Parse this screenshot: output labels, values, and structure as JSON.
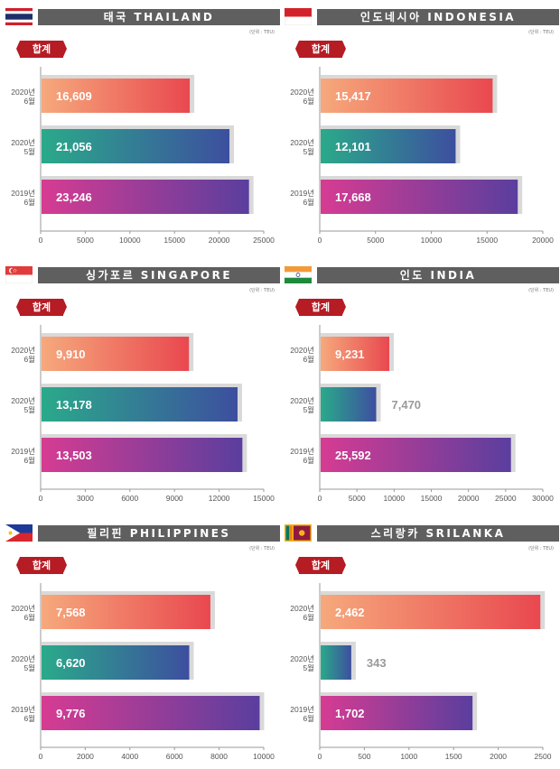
{
  "unit_label": "(단위 : TEU)",
  "sum_label": "합계",
  "colors": {
    "header_bg": "#5f5f5f",
    "tag_red": "#b51c24",
    "bar_shadow": "#d9d9d9",
    "grad_2020_06": [
      "#f6a97c",
      "#e9484f"
    ],
    "grad_2020_05": [
      "#2aaa8a",
      "#3d4f9f"
    ],
    "grad_2019_06": [
      "#d63c92",
      "#5a3e9e"
    ]
  },
  "chart_data": [
    {
      "type": "bar",
      "orientation": "horizontal",
      "title": "태국 THAILAND",
      "country": "thailand",
      "categories": [
        [
          "2020년",
          "6월"
        ],
        [
          "2020년",
          "5월"
        ],
        [
          "2019년",
          "6월"
        ]
      ],
      "values": [
        16609,
        21056,
        23246
      ],
      "labels": [
        "16,609",
        "21,056",
        "23,246"
      ],
      "xlim": [
        0,
        25000
      ],
      "xticks": [
        0,
        5000,
        10000,
        15000,
        20000,
        25000
      ]
    },
    {
      "type": "bar",
      "orientation": "horizontal",
      "title": "인도네시아 INDONESIA",
      "country": "indonesia",
      "categories": [
        [
          "2020년",
          "6월"
        ],
        [
          "2020년",
          "5월"
        ],
        [
          "2019년",
          "6월"
        ]
      ],
      "values": [
        15417,
        12101,
        17668
      ],
      "labels": [
        "15,417",
        "12,101",
        "17,668"
      ],
      "xlim": [
        0,
        20000
      ],
      "xticks": [
        0,
        5000,
        10000,
        15000,
        20000
      ]
    },
    {
      "type": "bar",
      "orientation": "horizontal",
      "title": "싱가포르 SINGAPORE",
      "country": "singapore",
      "categories": [
        [
          "2020년",
          "6월"
        ],
        [
          "2020년",
          "5월"
        ],
        [
          "2019년",
          "6월"
        ]
      ],
      "values": [
        9910,
        13178,
        13503
      ],
      "labels": [
        "9,910",
        "13,178",
        "13,503"
      ],
      "xlim": [
        0,
        15000
      ],
      "xticks": [
        0,
        3000,
        6000,
        9000,
        12000,
        15000
      ]
    },
    {
      "type": "bar",
      "orientation": "horizontal",
      "title": "인도 INDIA",
      "country": "india",
      "categories": [
        [
          "2020년",
          "6월"
        ],
        [
          "2020년",
          "5월"
        ],
        [
          "2019년",
          "6월"
        ]
      ],
      "values": [
        9231,
        7470,
        25592
      ],
      "labels": [
        "9,231",
        "7,470",
        "25,592"
      ],
      "xlim": [
        0,
        30000
      ],
      "xticks": [
        0,
        5000,
        10000,
        15000,
        20000,
        25000,
        30000
      ]
    },
    {
      "type": "bar",
      "orientation": "horizontal",
      "title": "필리핀 PHILIPPINES",
      "country": "philippines",
      "categories": [
        [
          "2020년",
          "6월"
        ],
        [
          "2020년",
          "5월"
        ],
        [
          "2019년",
          "6월"
        ]
      ],
      "values": [
        7568,
        6620,
        9776
      ],
      "labels": [
        "7,568",
        "6,620",
        "9,776"
      ],
      "xlim": [
        0,
        10000
      ],
      "xticks": [
        0,
        2000,
        4000,
        6000,
        8000,
        10000
      ]
    },
    {
      "type": "bar",
      "orientation": "horizontal",
      "title": "스리랑카 SRILANKA",
      "country": "srilanka",
      "categories": [
        [
          "2020년",
          "6월"
        ],
        [
          "2020년",
          "5월"
        ],
        [
          "2019년",
          "6월"
        ]
      ],
      "values": [
        2462,
        343,
        1702
      ],
      "labels": [
        "2,462",
        "343",
        "1,702"
      ],
      "xlim": [
        0,
        2500
      ],
      "xticks": [
        0,
        500,
        1000,
        1500,
        2000,
        2500
      ]
    }
  ]
}
